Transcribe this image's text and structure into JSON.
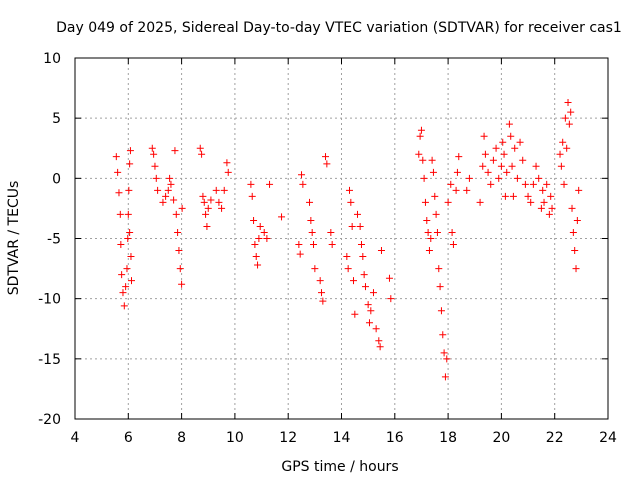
{
  "chart_data": {
    "type": "scatter",
    "title": "Day 049 of 2025, Sidereal Day-to-day VTEC variation (SDTVAR) for receiver cas1",
    "xlabel": "GPS time / hours",
    "ylabel": "SDTVAR / TECUs",
    "xlim": [
      4,
      24
    ],
    "ylim": [
      -20,
      10
    ],
    "x_ticks": [
      4,
      6,
      8,
      10,
      12,
      14,
      16,
      18,
      20,
      22,
      24
    ],
    "y_ticks": [
      -20,
      -15,
      -10,
      -5,
      0,
      5,
      10
    ],
    "x_tick_labels": [
      "4",
      "6",
      "8",
      "10",
      "12",
      "14",
      "16",
      "18",
      "20",
      "22",
      "24"
    ],
    "y_tick_labels": [
      "-20",
      "-15",
      "-10",
      "-5",
      "0",
      "5",
      "10"
    ],
    "grid": true,
    "marker": "+",
    "color": "#ff0000",
    "series": [
      {
        "name": "SDTVAR",
        "points": [
          [
            5.55,
            1.8
          ],
          [
            5.6,
            0.5
          ],
          [
            5.65,
            -1.2
          ],
          [
            5.7,
            -3.0
          ],
          [
            5.72,
            -5.5
          ],
          [
            5.75,
            -8.0
          ],
          [
            5.8,
            -9.5
          ],
          [
            5.85,
            -10.6
          ],
          [
            5.9,
            -9.0
          ],
          [
            5.95,
            -7.5
          ],
          [
            5.98,
            -5.0
          ],
          [
            6.0,
            -3.0
          ],
          [
            6.02,
            -1.0
          ],
          [
            6.05,
            1.2
          ],
          [
            6.08,
            2.3
          ],
          [
            6.1,
            -6.5
          ],
          [
            6.12,
            -8.5
          ],
          [
            6.05,
            -4.5
          ],
          [
            6.9,
            2.5
          ],
          [
            6.95,
            2.0
          ],
          [
            7.0,
            1.0
          ],
          [
            7.05,
            0.0
          ],
          [
            7.1,
            -1.0
          ],
          [
            7.3,
            -2.0
          ],
          [
            7.4,
            -1.5
          ],
          [
            7.5,
            -1.0
          ],
          [
            7.55,
            0.0
          ],
          [
            7.6,
            -0.5
          ],
          [
            7.7,
            -1.8
          ],
          [
            7.75,
            2.3
          ],
          [
            7.8,
            -3.0
          ],
          [
            7.85,
            -4.5
          ],
          [
            7.9,
            -6.0
          ],
          [
            7.95,
            -7.5
          ],
          [
            8.0,
            -8.8
          ],
          [
            8.02,
            -2.5
          ],
          [
            8.7,
            2.5
          ],
          [
            8.75,
            2.0
          ],
          [
            8.8,
            -1.5
          ],
          [
            8.85,
            -2.0
          ],
          [
            8.9,
            -3.0
          ],
          [
            8.95,
            -4.0
          ],
          [
            9.0,
            -2.5
          ],
          [
            9.1,
            -1.8
          ],
          [
            9.3,
            -1.0
          ],
          [
            9.4,
            -2.0
          ],
          [
            9.5,
            -2.5
          ],
          [
            9.6,
            -1.0
          ],
          [
            9.7,
            1.3
          ],
          [
            9.75,
            0.5
          ],
          [
            10.6,
            -0.5
          ],
          [
            10.65,
            -1.5
          ],
          [
            10.7,
            -3.5
          ],
          [
            10.75,
            -5.5
          ],
          [
            10.8,
            -6.5
          ],
          [
            10.85,
            -7.2
          ],
          [
            10.9,
            -5.0
          ],
          [
            10.95,
            -4.0
          ],
          [
            11.1,
            -4.5
          ],
          [
            11.2,
            -5.0
          ],
          [
            11.3,
            -0.5
          ],
          [
            11.75,
            -3.2
          ],
          [
            12.4,
            -5.5
          ],
          [
            12.45,
            -6.3
          ],
          [
            12.5,
            0.3
          ],
          [
            12.55,
            -0.5
          ],
          [
            12.8,
            -2.0
          ],
          [
            12.85,
            -3.5
          ],
          [
            12.9,
            -4.5
          ],
          [
            12.95,
            -5.5
          ],
          [
            13.0,
            -7.5
          ],
          [
            13.2,
            -8.5
          ],
          [
            13.25,
            -9.5
          ],
          [
            13.3,
            -10.2
          ],
          [
            13.4,
            1.8
          ],
          [
            13.45,
            1.2
          ],
          [
            13.6,
            -4.5
          ],
          [
            13.65,
            -5.5
          ],
          [
            14.2,
            -6.5
          ],
          [
            14.25,
            -7.5
          ],
          [
            14.3,
            -1.0
          ],
          [
            14.35,
            -2.0
          ],
          [
            14.4,
            -4.0
          ],
          [
            14.45,
            -8.5
          ],
          [
            14.5,
            -11.3
          ],
          [
            14.6,
            -3.0
          ],
          [
            14.7,
            -4.0
          ],
          [
            14.75,
            -5.5
          ],
          [
            14.8,
            -6.5
          ],
          [
            14.85,
            -8.0
          ],
          [
            14.9,
            -9.0
          ],
          [
            15.0,
            -10.5
          ],
          [
            15.05,
            -12.0
          ],
          [
            15.1,
            -11.0
          ],
          [
            15.2,
            -9.5
          ],
          [
            15.3,
            -12.5
          ],
          [
            15.4,
            -13.5
          ],
          [
            15.45,
            -14.0
          ],
          [
            15.5,
            -6.0
          ],
          [
            15.8,
            -8.3
          ],
          [
            15.85,
            -10.0
          ],
          [
            16.9,
            2.0
          ],
          [
            16.95,
            3.5
          ],
          [
            17.0,
            4.0
          ],
          [
            17.05,
            1.5
          ],
          [
            17.1,
            0.0
          ],
          [
            17.15,
            -2.0
          ],
          [
            17.2,
            -3.5
          ],
          [
            17.25,
            -4.5
          ],
          [
            17.3,
            -6.0
          ],
          [
            17.35,
            -5.0
          ],
          [
            17.4,
            1.5
          ],
          [
            17.45,
            0.5
          ],
          [
            17.5,
            -1.5
          ],
          [
            17.55,
            -3.0
          ],
          [
            17.6,
            -4.5
          ],
          [
            17.65,
            -7.5
          ],
          [
            17.7,
            -9.0
          ],
          [
            17.75,
            -11.0
          ],
          [
            17.8,
            -13.0
          ],
          [
            17.85,
            -14.5
          ],
          [
            17.9,
            -16.5
          ],
          [
            17.95,
            -15.0
          ],
          [
            18.0,
            -2.0
          ],
          [
            18.1,
            -0.5
          ],
          [
            18.15,
            -4.5
          ],
          [
            18.2,
            -5.5
          ],
          [
            18.3,
            -1.0
          ],
          [
            18.35,
            0.5
          ],
          [
            18.4,
            1.8
          ],
          [
            18.7,
            -1.0
          ],
          [
            18.8,
            0.0
          ],
          [
            19.2,
            -2.0
          ],
          [
            19.3,
            1.0
          ],
          [
            19.35,
            3.5
          ],
          [
            19.4,
            2.0
          ],
          [
            19.5,
            0.5
          ],
          [
            19.6,
            -0.5
          ],
          [
            19.7,
            1.5
          ],
          [
            19.8,
            2.5
          ],
          [
            19.9,
            0.0
          ],
          [
            20.0,
            1.0
          ],
          [
            20.05,
            3.0
          ],
          [
            20.1,
            2.0
          ],
          [
            20.15,
            -1.5
          ],
          [
            20.2,
            0.5
          ],
          [
            20.3,
            4.5
          ],
          [
            20.35,
            3.5
          ],
          [
            20.4,
            1.0
          ],
          [
            20.45,
            -1.5
          ],
          [
            20.5,
            2.5
          ],
          [
            20.6,
            0.0
          ],
          [
            20.7,
            3.0
          ],
          [
            20.8,
            1.5
          ],
          [
            20.9,
            -0.5
          ],
          [
            21.0,
            -1.5
          ],
          [
            21.1,
            -2.0
          ],
          [
            21.2,
            -0.5
          ],
          [
            21.3,
            1.0
          ],
          [
            21.4,
            0.0
          ],
          [
            21.5,
            -2.5
          ],
          [
            21.55,
            -1.0
          ],
          [
            21.6,
            -2.0
          ],
          [
            21.7,
            -0.5
          ],
          [
            21.8,
            -3.0
          ],
          [
            21.85,
            -1.5
          ],
          [
            21.9,
            -2.5
          ],
          [
            22.2,
            2.0
          ],
          [
            22.25,
            1.0
          ],
          [
            22.3,
            3.0
          ],
          [
            22.35,
            -0.5
          ],
          [
            22.4,
            5.0
          ],
          [
            22.45,
            2.5
          ],
          [
            22.5,
            6.3
          ],
          [
            22.55,
            4.5
          ],
          [
            22.6,
            5.5
          ],
          [
            22.65,
            -2.5
          ],
          [
            22.7,
            -4.5
          ],
          [
            22.75,
            -6.0
          ],
          [
            22.8,
            -7.5
          ],
          [
            22.85,
            -3.5
          ],
          [
            22.9,
            -1.0
          ]
        ]
      }
    ]
  }
}
